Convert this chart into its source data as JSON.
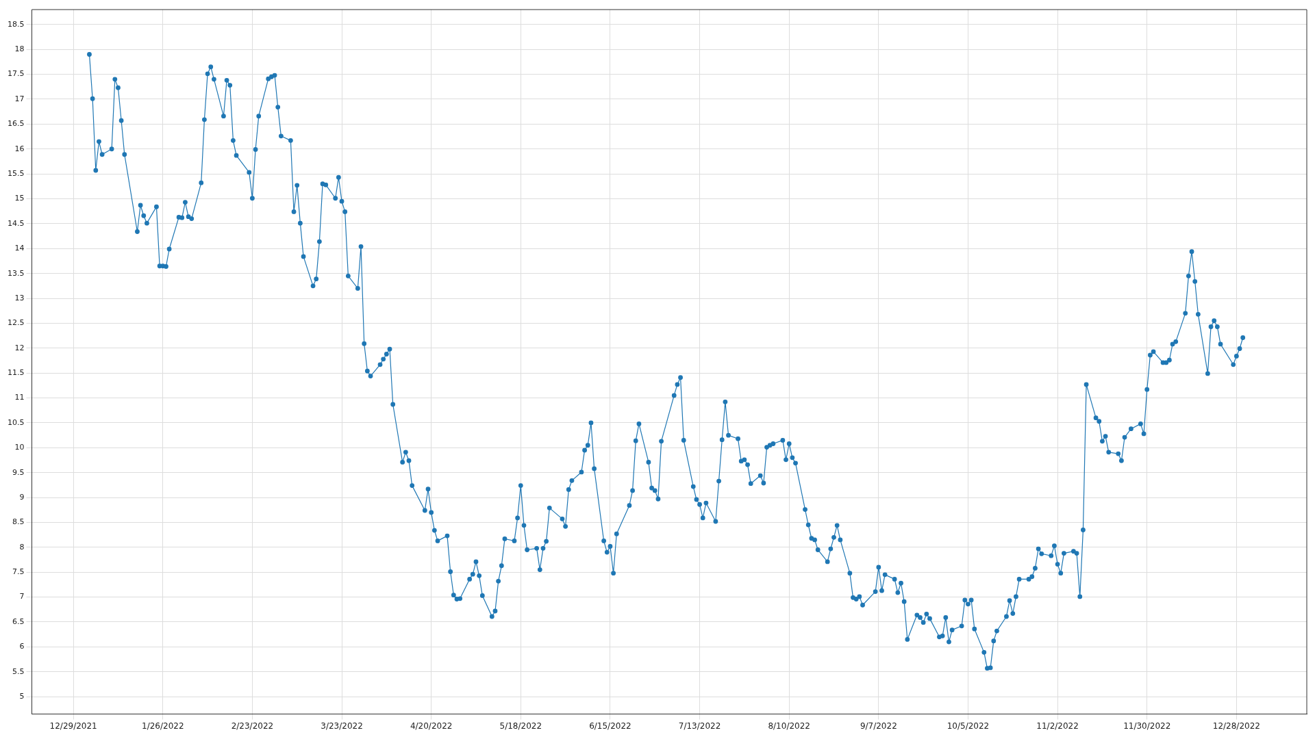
{
  "chart_data": {
    "type": "line",
    "color": "#1f77b4",
    "marker": "circle",
    "line_style": "solid",
    "grid": true,
    "legend": false,
    "xlim": [
      "2021-12-16",
      "2023-01-19"
    ],
    "ylim": [
      4.65,
      18.8
    ],
    "yticks": [
      5,
      5.5,
      6,
      6.5,
      7,
      7.5,
      8,
      8.5,
      9,
      9.5,
      10,
      10.5,
      11,
      11.5,
      12,
      12.5,
      13,
      13.5,
      14,
      14.5,
      15,
      15.5,
      16,
      16.5,
      17,
      17.5,
      18,
      18.5
    ],
    "xticks": [
      {
        "value": "2021-12-29",
        "label": "12/29/2021"
      },
      {
        "value": "2022-01-26",
        "label": "1/26/2022"
      },
      {
        "value": "2022-02-23",
        "label": "2/23/2022"
      },
      {
        "value": "2022-03-23",
        "label": "3/23/2022"
      },
      {
        "value": "2022-04-20",
        "label": "4/20/2022"
      },
      {
        "value": "2022-05-18",
        "label": "5/18/2022"
      },
      {
        "value": "2022-06-15",
        "label": "6/15/2022"
      },
      {
        "value": "2022-07-13",
        "label": "7/13/2022"
      },
      {
        "value": "2022-08-10",
        "label": "8/10/2022"
      },
      {
        "value": "2022-09-07",
        "label": "9/7/2022"
      },
      {
        "value": "2022-10-05",
        "label": "10/5/2022"
      },
      {
        "value": "2022-11-02",
        "label": "11/2/2022"
      },
      {
        "value": "2022-11-30",
        "label": "11/30/2022"
      },
      {
        "value": "2022-12-28",
        "label": "12/28/2022"
      }
    ],
    "x": [
      "2022-01-03",
      "2022-01-04",
      "2022-01-05",
      "2022-01-06",
      "2022-01-07",
      "2022-01-10",
      "2022-01-11",
      "2022-01-12",
      "2022-01-13",
      "2022-01-14",
      "2022-01-18",
      "2022-01-19",
      "2022-01-20",
      "2022-01-21",
      "2022-01-24",
      "2022-01-25",
      "2022-01-26",
      "2022-01-27",
      "2022-01-28",
      "2022-01-31",
      "2022-02-01",
      "2022-02-02",
      "2022-02-03",
      "2022-02-04",
      "2022-02-07",
      "2022-02-08",
      "2022-02-09",
      "2022-02-10",
      "2022-02-11",
      "2022-02-14",
      "2022-02-15",
      "2022-02-16",
      "2022-02-17",
      "2022-02-18",
      "2022-02-22",
      "2022-02-23",
      "2022-02-24",
      "2022-02-25",
      "2022-02-28",
      "2022-03-01",
      "2022-03-02",
      "2022-03-03",
      "2022-03-04",
      "2022-03-07",
      "2022-03-08",
      "2022-03-09",
      "2022-03-10",
      "2022-03-11",
      "2022-03-14",
      "2022-03-15",
      "2022-03-16",
      "2022-03-17",
      "2022-03-18",
      "2022-03-21",
      "2022-03-22",
      "2022-03-23",
      "2022-03-24",
      "2022-03-25",
      "2022-03-28",
      "2022-03-29",
      "2022-03-30",
      "2022-03-31",
      "2022-04-01",
      "2022-04-04",
      "2022-04-05",
      "2022-04-06",
      "2022-04-07",
      "2022-04-08",
      "2022-04-11",
      "2022-04-12",
      "2022-04-13",
      "2022-04-14",
      "2022-04-18",
      "2022-04-19",
      "2022-04-20",
      "2022-04-21",
      "2022-04-22",
      "2022-04-25",
      "2022-04-26",
      "2022-04-27",
      "2022-04-28",
      "2022-04-29",
      "2022-05-02",
      "2022-05-03",
      "2022-05-04",
      "2022-05-05",
      "2022-05-06",
      "2022-05-09",
      "2022-05-10",
      "2022-05-11",
      "2022-05-12",
      "2022-05-13",
      "2022-05-16",
      "2022-05-17",
      "2022-05-18",
      "2022-05-19",
      "2022-05-20",
      "2022-05-23",
      "2022-05-24",
      "2022-05-25",
      "2022-05-26",
      "2022-05-27",
      "2022-05-31",
      "2022-06-01",
      "2022-06-02",
      "2022-06-03",
      "2022-06-06",
      "2022-06-07",
      "2022-06-08",
      "2022-06-09",
      "2022-06-10",
      "2022-06-13",
      "2022-06-14",
      "2022-06-15",
      "2022-06-16",
      "2022-06-17",
      "2022-06-21",
      "2022-06-22",
      "2022-06-23",
      "2022-06-24",
      "2022-06-27",
      "2022-06-28",
      "2022-06-29",
      "2022-06-30",
      "2022-07-01",
      "2022-07-05",
      "2022-07-06",
      "2022-07-07",
      "2022-07-08",
      "2022-07-11",
      "2022-07-12",
      "2022-07-13",
      "2022-07-14",
      "2022-07-15",
      "2022-07-18",
      "2022-07-19",
      "2022-07-20",
      "2022-07-21",
      "2022-07-22",
      "2022-07-25",
      "2022-07-26",
      "2022-07-27",
      "2022-07-28",
      "2022-07-29",
      "2022-08-01",
      "2022-08-02",
      "2022-08-03",
      "2022-08-04",
      "2022-08-05",
      "2022-08-08",
      "2022-08-09",
      "2022-08-10",
      "2022-08-11",
      "2022-08-12",
      "2022-08-15",
      "2022-08-16",
      "2022-08-17",
      "2022-08-18",
      "2022-08-19",
      "2022-08-22",
      "2022-08-23",
      "2022-08-24",
      "2022-08-25",
      "2022-08-26",
      "2022-08-29",
      "2022-08-30",
      "2022-08-31",
      "2022-09-01",
      "2022-09-02",
      "2022-09-06",
      "2022-09-07",
      "2022-09-08",
      "2022-09-09",
      "2022-09-12",
      "2022-09-13",
      "2022-09-14",
      "2022-09-15",
      "2022-09-16",
      "2022-09-19",
      "2022-09-20",
      "2022-09-21",
      "2022-09-22",
      "2022-09-23",
      "2022-09-26",
      "2022-09-27",
      "2022-09-28",
      "2022-09-29",
      "2022-09-30",
      "2022-10-03",
      "2022-10-04",
      "2022-10-05",
      "2022-10-06",
      "2022-10-07",
      "2022-10-10",
      "2022-10-11",
      "2022-10-12",
      "2022-10-13",
      "2022-10-14",
      "2022-10-17",
      "2022-10-18",
      "2022-10-19",
      "2022-10-20",
      "2022-10-21",
      "2022-10-24",
      "2022-10-25",
      "2022-10-26",
      "2022-10-27",
      "2022-10-28",
      "2022-10-31",
      "2022-11-01",
      "2022-11-02",
      "2022-11-03",
      "2022-11-04",
      "2022-11-07",
      "2022-11-08",
      "2022-11-09",
      "2022-11-10",
      "2022-11-11",
      "2022-11-14",
      "2022-11-15",
      "2022-11-16",
      "2022-11-17",
      "2022-11-18",
      "2022-11-21",
      "2022-11-22",
      "2022-11-23",
      "2022-11-25",
      "2022-11-28",
      "2022-11-29",
      "2022-11-30",
      "2022-12-01",
      "2022-12-02",
      "2022-12-05",
      "2022-12-06",
      "2022-12-07",
      "2022-12-08",
      "2022-12-09",
      "2022-12-12",
      "2022-12-13",
      "2022-12-14",
      "2022-12-15",
      "2022-12-16",
      "2022-12-19",
      "2022-12-20",
      "2022-12-21",
      "2022-12-22",
      "2022-12-23",
      "2022-12-27",
      "2022-12-28",
      "2022-12-29",
      "2022-12-30"
    ],
    "values": [
      17.9,
      17.01,
      15.57,
      16.15,
      15.89,
      16.0,
      17.4,
      17.23,
      16.57,
      15.89,
      14.34,
      14.87,
      14.66,
      14.51,
      14.84,
      13.65,
      13.65,
      13.64,
      13.99,
      14.63,
      14.62,
      14.93,
      14.64,
      14.6,
      15.32,
      16.59,
      17.51,
      17.65,
      17.4,
      16.66,
      17.38,
      17.28,
      16.17,
      15.87,
      15.53,
      15.01,
      15.99,
      16.66,
      17.41,
      17.45,
      17.48,
      16.84,
      16.26,
      16.17,
      14.74,
      15.27,
      14.51,
      13.84,
      13.25,
      13.39,
      14.14,
      15.3,
      15.28,
      15.01,
      15.43,
      14.95,
      14.74,
      13.45,
      13.2,
      14.04,
      12.09,
      11.54,
      11.44,
      11.67,
      11.78,
      11.88,
      11.98,
      10.87,
      9.71,
      9.91,
      9.74,
      9.24,
      8.74,
      9.17,
      8.7,
      8.34,
      8.13,
      8.23,
      7.51,
      7.04,
      6.96,
      6.97,
      7.36,
      7.46,
      7.71,
      7.43,
      7.03,
      6.61,
      6.72,
      7.32,
      7.63,
      8.17,
      8.13,
      8.59,
      9.24,
      8.44,
      7.95,
      7.98,
      7.55,
      7.98,
      8.12,
      8.79,
      8.57,
      8.42,
      9.16,
      9.34,
      9.51,
      9.95,
      10.05,
      10.5,
      9.58,
      8.13,
      7.9,
      8.02,
      7.48,
      8.27,
      8.84,
      9.14,
      10.14,
      10.48,
      9.71,
      9.19,
      9.14,
      8.97,
      10.13,
      11.05,
      11.27,
      11.41,
      10.15,
      9.22,
      8.96,
      8.86,
      8.59,
      8.89,
      8.52,
      9.33,
      10.16,
      10.92,
      10.25,
      10.18,
      9.73,
      9.76,
      9.66,
      9.28,
      9.44,
      9.29,
      10.01,
      10.05,
      10.08,
      10.15,
      9.76,
      10.08,
      9.8,
      9.69,
      8.76,
      8.45,
      8.18,
      8.15,
      7.95,
      7.71,
      7.97,
      8.2,
      8.44,
      8.15,
      7.48,
      6.99,
      6.96,
      7.01,
      6.84,
      7.11,
      7.6,
      7.13,
      7.45,
      7.36,
      7.09,
      7.28,
      6.91,
      6.15,
      6.64,
      6.59,
      6.49,
      6.66,
      6.57,
      6.2,
      6.22,
      6.59,
      6.1,
      6.34,
      6.42,
      6.94,
      6.86,
      6.94,
      6.36,
      5.89,
      5.57,
      5.58,
      6.12,
      6.32,
      6.61,
      6.93,
      6.67,
      7.01,
      7.36,
      7.36,
      7.41,
      7.58,
      7.97,
      7.87,
      7.83,
      8.03,
      7.66,
      7.48,
      7.88,
      7.92,
      7.88,
      7.01,
      8.35,
      11.27,
      10.6,
      10.53,
      10.13,
      10.23,
      9.91,
      9.88,
      9.74,
      10.21,
      10.38,
      10.48,
      10.28,
      11.17,
      11.86,
      11.93,
      11.71,
      11.71,
      11.76,
      12.08,
      12.13,
      12.7,
      13.45,
      13.94,
      13.34,
      12.68,
      11.49,
      12.43,
      12.55,
      12.43,
      12.08,
      11.67,
      11.84,
      11.99,
      12.21
    ]
  }
}
